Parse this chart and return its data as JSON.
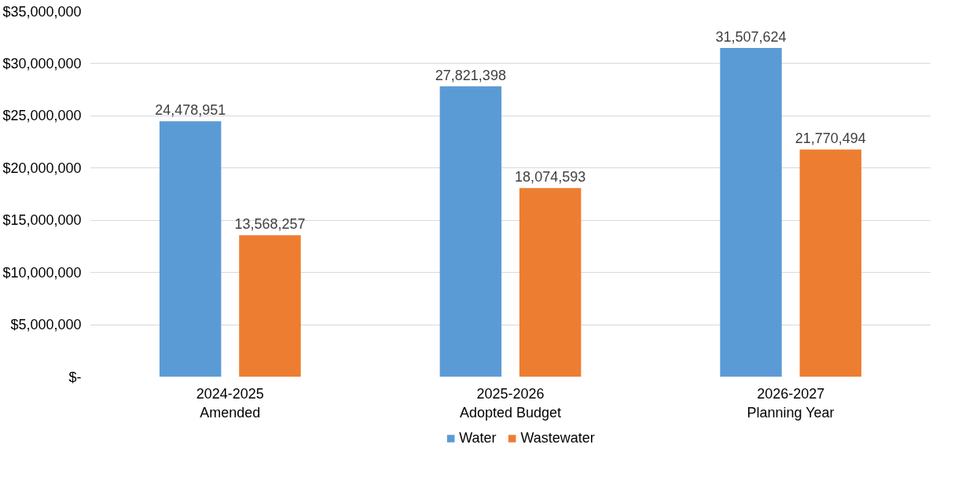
{
  "chart_data": {
    "type": "bar",
    "categories": [
      "2024-2025\nAmended",
      "2025-2026\nAdopted Budget",
      "2026-2027\nPlanning Year"
    ],
    "series": [
      {
        "name": "Water",
        "color": "#5b9bd5",
        "values": [
          24478951,
          27821398,
          31507624
        ],
        "value_labels": [
          "24,478,951",
          "27,821,398",
          "31,507,624"
        ]
      },
      {
        "name": "Wastewater",
        "color": "#ed7d31",
        "values": [
          13568257,
          18074593,
          21770494
        ],
        "value_labels": [
          "13,568,257",
          "18,074,593",
          "21,770,494"
        ]
      }
    ],
    "ylim": [
      0,
      35000000
    ],
    "yticks": [
      {
        "value": 0,
        "label": "$-"
      },
      {
        "value": 5000000,
        "label": "$5,000,000"
      },
      {
        "value": 10000000,
        "label": "$10,000,000"
      },
      {
        "value": 15000000,
        "label": "$15,000,000"
      },
      {
        "value": 20000000,
        "label": "$20,000,000"
      },
      {
        "value": 25000000,
        "label": "$25,000,000"
      },
      {
        "value": 30000000,
        "label": "$30,000,000"
      },
      {
        "value": 35000000,
        "label": "$35,000,000"
      }
    ],
    "grid": "y",
    "legend": "bottom"
  }
}
